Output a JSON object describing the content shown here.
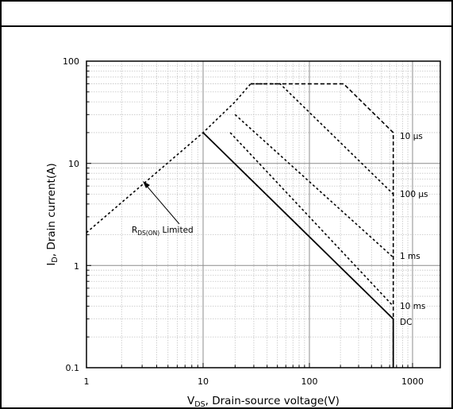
{
  "chart_data": {
    "type": "line",
    "x_scale": "log",
    "y_scale": "log",
    "xlim": [
      1,
      1000
    ],
    "ylim": [
      0.1,
      100
    ],
    "x_ticks": [
      "1",
      "10",
      "100",
      "1000"
    ],
    "y_ticks": [
      "0.1",
      "1",
      "10",
      "100"
    ],
    "xlabel": {
      "main": "V",
      "sub": "DS",
      "rest": ", Drain-source voltage(V)"
    },
    "ylabel": {
      "main": "I",
      "sub": "D",
      "rest": ", Drain current(A)"
    },
    "grid": true,
    "series": [
      {
        "name": "10 µs",
        "style": "dashed",
        "x": [
          28,
          53,
          215,
          650,
          650
        ],
        "y": [
          60,
          60,
          60,
          20,
          0.1
        ]
      },
      {
        "name": "100 µs",
        "style": "dotted",
        "x": [
          28,
          53,
          650
        ],
        "y": [
          60,
          60,
          5
        ]
      },
      {
        "name": "1 ms",
        "style": "dotted",
        "x": [
          20,
          650
        ],
        "y": [
          30,
          1.2
        ]
      },
      {
        "name": "10 ms",
        "style": "dotted",
        "x": [
          18,
          650
        ],
        "y": [
          20,
          0.4
        ]
      },
      {
        "name": "DC",
        "style": "solid",
        "x": [
          10,
          650,
          650
        ],
        "y": [
          20,
          0.3,
          0.1
        ]
      },
      {
        "name": "R_DS(ON) Limited",
        "style": "dotted",
        "x": [
          1,
          10,
          20,
          28
        ],
        "y": [
          2.1,
          20,
          40,
          60
        ]
      }
    ],
    "annotation": {
      "main": "R",
      "sub": "DS(ON)",
      "rest": " Limited"
    }
  }
}
